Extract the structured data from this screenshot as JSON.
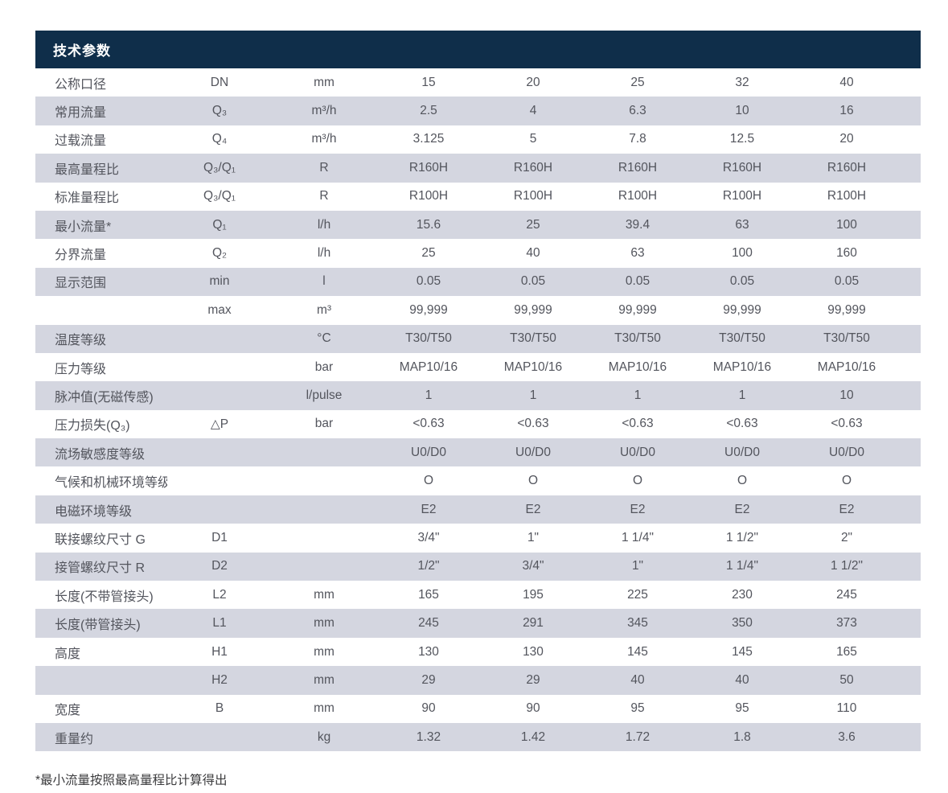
{
  "table": {
    "title": "技术参数",
    "header_bg": "#0f2e4a",
    "header_text_color": "#ffffff",
    "row_alt_bg": "#d4d6e0",
    "text_color": "#53555d",
    "rows": [
      {
        "label": "公称口径",
        "symbol": "DN",
        "unit": "mm",
        "values": [
          "15",
          "20",
          "25",
          "32",
          "40"
        ]
      },
      {
        "label": "常用流量",
        "symbol": "Q₃",
        "unit": "m³/h",
        "values": [
          "2.5",
          "4",
          "6.3",
          "10",
          "16"
        ]
      },
      {
        "label": "过载流量",
        "symbol": "Q₄",
        "unit": "m³/h",
        "values": [
          "3.125",
          "5",
          "7.8",
          "12.5",
          "20"
        ]
      },
      {
        "label": "最高量程比",
        "symbol": "Q₃/Q₁",
        "unit": "R",
        "values": [
          "R160H",
          "R160H",
          "R160H",
          "R160H",
          "R160H"
        ]
      },
      {
        "label": "标准量程比",
        "symbol": "Q₃/Q₁",
        "unit": "R",
        "values": [
          "R100H",
          "R100H",
          "R100H",
          "R100H",
          "R100H"
        ]
      },
      {
        "label": "最小流量*",
        "symbol": "Q₁",
        "unit": "l/h",
        "values": [
          "15.6",
          "25",
          "39.4",
          "63",
          "100"
        ]
      },
      {
        "label": "分界流量",
        "symbol": "Q₂",
        "unit": "l/h",
        "values": [
          "25",
          "40",
          "63",
          "100",
          "160"
        ]
      },
      {
        "label": "显示范围",
        "symbol": "min",
        "unit": "l",
        "values": [
          "0.05",
          "0.05",
          "0.05",
          "0.05",
          "0.05"
        ]
      },
      {
        "label": "",
        "symbol": "max",
        "unit": "m³",
        "values": [
          "99,999",
          "99,999",
          "99,999",
          "99,999",
          "99,999"
        ]
      },
      {
        "label": "温度等级",
        "symbol": "",
        "unit": "°C",
        "values": [
          "T30/T50",
          "T30/T50",
          "T30/T50",
          "T30/T50",
          "T30/T50"
        ]
      },
      {
        "label": "压力等级",
        "symbol": "",
        "unit": "bar",
        "values": [
          "MAP10/16",
          "MAP10/16",
          "MAP10/16",
          "MAP10/16",
          "MAP10/16"
        ]
      },
      {
        "label": "脉冲值(无磁传感)",
        "symbol": "",
        "unit": "l/pulse",
        "values": [
          "1",
          "1",
          "1",
          "1",
          "10"
        ]
      },
      {
        "label": "压力损失(Q₃)",
        "symbol": "△P",
        "unit": "bar",
        "values": [
          "<0.63",
          "<0.63",
          "<0.63",
          "<0.63",
          "<0.63"
        ]
      },
      {
        "label": "流场敏感度等级",
        "symbol": "",
        "unit": "",
        "values": [
          "U0/D0",
          "U0/D0",
          "U0/D0",
          "U0/D0",
          "U0/D0"
        ]
      },
      {
        "label": "气候和机械环境等级",
        "symbol": "",
        "unit": "",
        "values": [
          "O",
          "O",
          "O",
          "O",
          "O"
        ]
      },
      {
        "label": "电磁环境等级",
        "symbol": "",
        "unit": "",
        "values": [
          "E2",
          "E2",
          "E2",
          "E2",
          "E2"
        ]
      },
      {
        "label": "联接螺纹尺寸 G",
        "symbol": "D1",
        "unit": "",
        "values": [
          "3/4\"",
          "1\"",
          "1 1/4\"",
          "1 1/2\"",
          "2\""
        ]
      },
      {
        "label": "接管螺纹尺寸 R",
        "symbol": "D2",
        "unit": "",
        "values": [
          "1/2\"",
          "3/4\"",
          "1\"",
          "1 1/4\"",
          "1 1/2\""
        ]
      },
      {
        "label": "长度(不带管接头)",
        "symbol": "L2",
        "unit": "mm",
        "values": [
          "165",
          "195",
          "225",
          "230",
          "245"
        ]
      },
      {
        "label": "长度(带管接头)",
        "symbol": "L1",
        "unit": "mm",
        "values": [
          "245",
          "291",
          "345",
          "350",
          "373"
        ]
      },
      {
        "label": "高度",
        "symbol": "H1",
        "unit": "mm",
        "values": [
          "130",
          "130",
          "145",
          "145",
          "165"
        ]
      },
      {
        "label": "",
        "symbol": "H2",
        "unit": "mm",
        "values": [
          "29",
          "29",
          "40",
          "40",
          "50"
        ]
      },
      {
        "label": "宽度",
        "symbol": "B",
        "unit": "mm",
        "values": [
          "90",
          "90",
          "95",
          "95",
          "110"
        ]
      },
      {
        "label": "重量约",
        "symbol": "",
        "unit": "kg",
        "values": [
          "1.32",
          "1.42",
          "1.72",
          "1.8",
          "3.6"
        ]
      }
    ]
  },
  "footnote": "*最小流量按照最高量程比计算得出"
}
